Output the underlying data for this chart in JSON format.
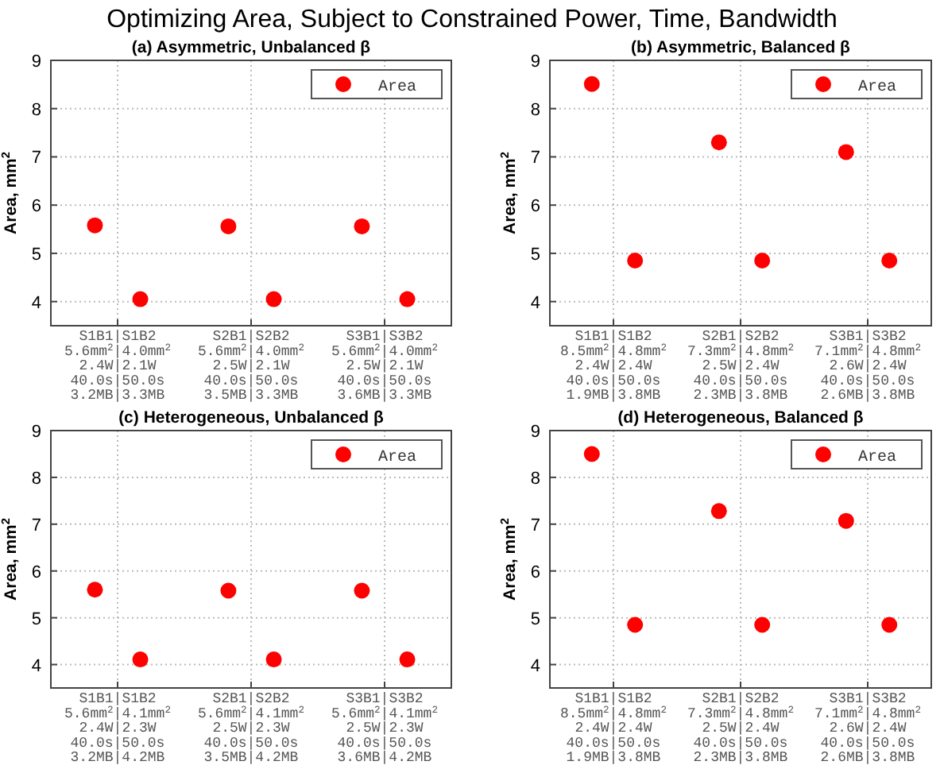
{
  "chart_data": [
    {
      "type": "scatter",
      "title": "(a) Asymmetric, Unbalanced β",
      "ylabel": "Area, mm$^{2}$",
      "ylim": [
        3.5,
        9
      ],
      "yticks": [
        4,
        5,
        6,
        7,
        8,
        9
      ],
      "categories": [
        "S1B1|S1B2",
        "S2B1|S2B2",
        "S3B1|S3B2"
      ],
      "annotations": [
        "Optimizing Area, Subject to Constrained Power, Time, Bandwidth",
        "5.6mm$^{2}$|4.0mm$^{2}$",
        "2.4W|2.1W",
        "40.0s|50.0s",
        "3.2MB|3.3MB",
        "5.6mm$^{2}$|4.0mm$^{2}$",
        "2.5W|2.1W",
        "40.0s|50.0s",
        "3.5MB|3.3MB",
        "5.6mm$^{2}$|4.0mm$^{2}$",
        "2.5W|2.1W",
        "40.0s|50.0s",
        "3.6MB|3.3MB"
      ],
      "grid": true,
      "legend": "top right",
      "marker": "circle",
      "series": [
        {
          "name": "Area",
          "color": "#ff0000",
          "x": [
            "S1B1|S1B2",
            "S1B1|S1B2",
            "S2B1|S2B2",
            "S2B1|S2B2",
            "S3B1|S3B2",
            "S3B1|S3B2"
          ],
          "values": [
            5.58,
            4.05,
            5.56,
            4.05,
            5.56,
            4.05
          ]
        }
      ]
    },
    {
      "type": "scatter",
      "title": "(b) Asymmetric, Balanced β",
      "ylabel": "Area, mm$^{2}$",
      "ylim": [
        3.5,
        9
      ],
      "yticks": [
        4,
        5,
        6,
        7,
        8,
        9
      ],
      "categories": [
        "S1B1|S1B2",
        "S2B1|S2B2",
        "S3B1|S3B2"
      ],
      "annotations": [
        "8.5mm$^{2}$|4.8mm$^{2}$",
        "2.4W|2.4W",
        "40.0s|50.0s",
        "1.9MB|3.8MB",
        "7.3mm$^{2}$|4.8mm$^{2}$",
        "2.5W|2.4W",
        "40.0s|50.0s",
        "2.3MB|3.8MB",
        "7.1mm$^{2}$|4.8mm$^{2}$",
        "2.6W|2.4W",
        "40.0s|50.0s",
        "2.6MB|3.8MB"
      ],
      "grid": true,
      "legend": "top right",
      "marker": "circle",
      "series": [
        {
          "name": "Area",
          "color": "#ff0000",
          "x": [
            "S1B1|S1B2",
            "S1B1|S1B2",
            "S2B1|S2B2",
            "S2B1|S2B2",
            "S3B1|S3B2",
            "S3B1|S3B2"
          ],
          "values": [
            8.51,
            4.85,
            7.3,
            4.85,
            7.1,
            4.85
          ]
        }
      ]
    },
    {
      "type": "scatter",
      "title": "(c) Heterogeneous, Unbalanced β",
      "ylabel": "Area, mm$^{2}$",
      "ylim": [
        3.5,
        9
      ],
      "yticks": [
        4,
        5,
        6,
        7,
        8,
        9
      ],
      "categories": [
        "S1B1|S1B2",
        "S2B1|S2B2",
        "S3B1|S3B2"
      ],
      "annotations": [
        "5.6mm$^{2}$|4.1mm$^{2}$",
        "2.4W|2.3W",
        "40.0s|50.0s",
        "3.2MB|4.2MB",
        "5.6mm$^{2}$|4.1mm$^{2}$",
        "2.5W|2.3W",
        "40.0s|50.0s",
        "3.5MB|4.2MB",
        "5.6mm$^{2}$|4.1mm$^{2}$",
        "2.5W|2.3W",
        "40.0s|50.0s",
        "3.6MB|4.2MB"
      ],
      "grid": true,
      "legend": "top right",
      "marker": "circle",
      "series": [
        {
          "name": "Area",
          "color": "#ff0000",
          "x": [
            "S1B1|S1B2",
            "S1B1|S1B2",
            "S2B1|S2B2",
            "S2B1|S2B2",
            "S3B1|S3B2",
            "S3B1|S3B2"
          ],
          "values": [
            5.6,
            4.11,
            5.58,
            4.11,
            5.58,
            4.11
          ]
        }
      ]
    },
    {
      "type": "scatter",
      "title": "(d) Heterogeneous, Balanced β",
      "ylabel": "Area, mm$^{2}$",
      "ylim": [
        3.5,
        9
      ],
      "yticks": [
        4,
        5,
        6,
        7,
        8,
        9
      ],
      "categories": [
        "S1B1|S1B2",
        "S2B1|S2B2",
        "S3B1|S3B2"
      ],
      "annotations": [
        "8.5mm$^{2}$|4.8mm$^{2}$",
        "2.4W|2.4W",
        "40.0s|50.0s",
        "1.9MB|3.8MB",
        "7.3mm$^{2}$|4.8mm$^{2}$",
        "2.5W|2.4W",
        "40.0s|50.0s",
        "2.3MB|3.8MB",
        "7.1mm$^{2}$|4.8mm$^{2}$",
        "2.6W|2.4W",
        "40.0s|50.0s",
        "2.6MB|3.8MB"
      ],
      "grid": true,
      "legend": "top right",
      "marker": "circle",
      "series": [
        {
          "name": "Area",
          "color": "#ff0000",
          "x": [
            "S1B1|S1B2",
            "S1B1|S1B2",
            "S2B1|S2B2",
            "S2B1|S2B2",
            "S3B1|S3B2",
            "S3B1|S3B2"
          ],
          "values": [
            8.5,
            4.85,
            7.28,
            4.85,
            7.07,
            4.85
          ]
        }
      ]
    }
  ]
}
